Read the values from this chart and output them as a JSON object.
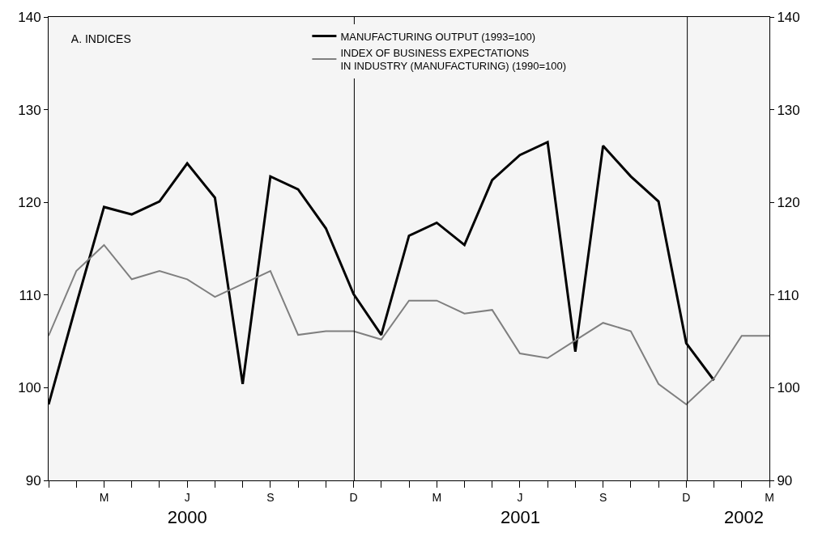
{
  "chart_data": {
    "type": "line",
    "title": "A. INDICES",
    "categories": [
      null,
      null,
      "M",
      null,
      null,
      "J",
      null,
      null,
      "S",
      null,
      null,
      "D",
      null,
      null,
      "M",
      null,
      null,
      "J",
      null,
      null,
      "S",
      null,
      null,
      "D",
      null,
      null,
      "M"
    ],
    "series": [
      {
        "name": "MANUFACTURING OUTPUT (1993=100)",
        "color": "#000000",
        "values": [
          98.2,
          109.0,
          119.5,
          118.7,
          120.1,
          124.2,
          120.5,
          100.4,
          122.8,
          121.4,
          117.2,
          110.1,
          105.7,
          116.4,
          117.8,
          115.4,
          122.4,
          125.1,
          126.5,
          103.9,
          126.1,
          122.8,
          120.1,
          104.8,
          100.8,
          null,
          null
        ]
      },
      {
        "name": "INDEX OF BUSINESS EXPECTATIONS\nIN INDUSTRY (MANUFACTURING) (1990=100)",
        "color": "#7f7f7f",
        "values": [
          105.6,
          112.6,
          115.4,
          111.7,
          112.6,
          111.7,
          109.8,
          111.2,
          112.6,
          105.7,
          106.1,
          106.1,
          105.2,
          109.4,
          109.4,
          108.0,
          108.4,
          103.7,
          103.2,
          105.1,
          107.0,
          106.1,
          100.4,
          98.2,
          101.0,
          105.6,
          105.6
        ]
      }
    ],
    "x2lim": [
      "2000-01",
      "2002-03"
    ],
    "x2ticks": [
      {
        "value": "2000-06",
        "label": "2000"
      },
      {
        "value": "2001-06",
        "label": "2001"
      },
      {
        "value": "2002-02",
        "label": "2002"
      }
    ],
    "ylim": [
      90,
      140
    ],
    "yticks": [
      90,
      100,
      110,
      120,
      130,
      140
    ],
    "y2lim": [
      90,
      140
    ],
    "y2ticks": [
      90,
      100,
      110,
      120,
      130,
      140
    ],
    "ref_lines": [
      {
        "axis": "x2",
        "value": "2000-12",
        "color": "#000000"
      },
      {
        "axis": "x2",
        "value": "2001-12",
        "color": "#000000"
      }
    ],
    "grid": false,
    "legend": "top",
    "marker": "none",
    "line_style": "solid"
  }
}
